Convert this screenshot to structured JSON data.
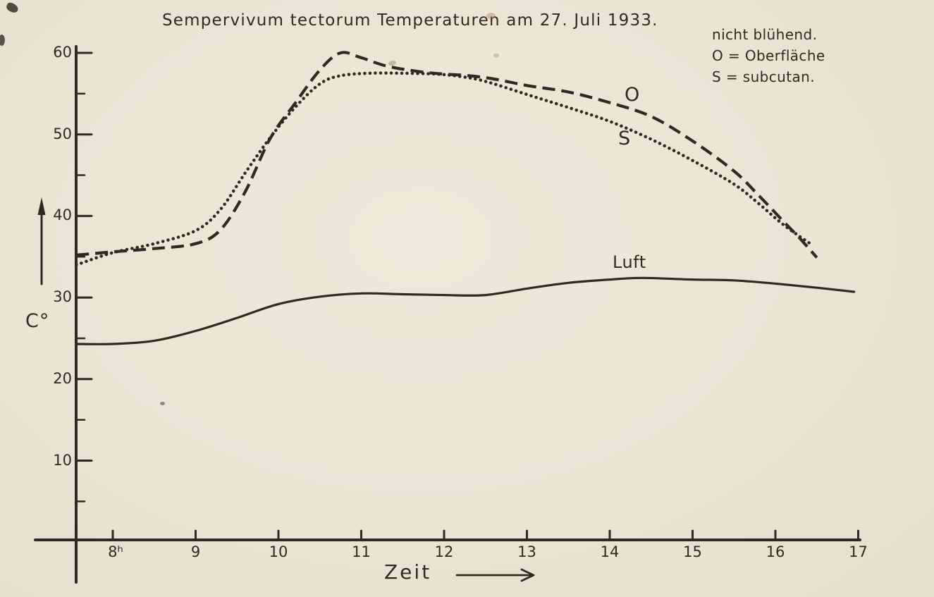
{
  "colors": {
    "paper": "#ece4d3",
    "ink": "#2e2a22"
  },
  "chart_data": {
    "type": "line",
    "title": "Sempervivum tectorum Temperaturen am 27. Juli 1933.",
    "xlabel": "Zeit",
    "ylabel": "C°",
    "x_unit": "hour of day",
    "y_unit": "degrees Celsius",
    "xlim": [
      7.56,
      17
    ],
    "ylim": [
      0,
      62
    ],
    "x_ticks": [
      8,
      9,
      10,
      11,
      12,
      13,
      14,
      15,
      16,
      17
    ],
    "x_tick_labels": [
      "8ʰ",
      "9",
      "10",
      "11",
      "12",
      "13",
      "14",
      "15",
      "16",
      "17"
    ],
    "y_ticks": [
      10,
      20,
      30,
      40,
      50,
      60
    ],
    "y_tick_labels": [
      "10",
      "20",
      "30",
      "40",
      "50",
      "60"
    ],
    "y_minor_ticks": [
      5,
      15,
      25,
      35,
      45,
      55
    ],
    "grid": false,
    "legend": {
      "position": "top-right",
      "heading": "nicht blühend.",
      "entries": [
        "O = Oberfläche",
        "S = subcutan."
      ]
    },
    "series": [
      {
        "name": "Oberflaeche",
        "label": "O",
        "line_style": "dashed",
        "points": [
          [
            7.56,
            35.2
          ],
          [
            8.0,
            35.6
          ],
          [
            8.5,
            36.0
          ],
          [
            9.0,
            36.6
          ],
          [
            9.3,
            38.3
          ],
          [
            9.6,
            43.0
          ],
          [
            9.9,
            49.5
          ],
          [
            10.2,
            53.8
          ],
          [
            10.5,
            57.9
          ],
          [
            10.75,
            60.0
          ],
          [
            11.0,
            59.4
          ],
          [
            11.3,
            58.4
          ],
          [
            11.7,
            57.7
          ],
          [
            12.0,
            57.4
          ],
          [
            12.3,
            57.2
          ],
          [
            12.6,
            56.8
          ],
          [
            13.0,
            56.0
          ],
          [
            13.5,
            55.2
          ],
          [
            14.0,
            53.9
          ],
          [
            14.5,
            52.2
          ],
          [
            15.0,
            49.2
          ],
          [
            15.5,
            45.5
          ],
          [
            15.8,
            42.5
          ],
          [
            16.1,
            39.3
          ],
          [
            16.3,
            37.2
          ],
          [
            16.5,
            34.9
          ]
        ]
      },
      {
        "name": "subcutan",
        "label": "S",
        "line_style": "dotted",
        "points": [
          [
            7.56,
            34.0
          ],
          [
            8.0,
            35.5
          ],
          [
            8.5,
            36.6
          ],
          [
            9.0,
            38.2
          ],
          [
            9.3,
            40.8
          ],
          [
            9.6,
            45.3
          ],
          [
            9.9,
            49.6
          ],
          [
            10.2,
            53.3
          ],
          [
            10.5,
            56.2
          ],
          [
            10.75,
            57.2
          ],
          [
            11.1,
            57.5
          ],
          [
            11.5,
            57.5
          ],
          [
            11.9,
            57.4
          ],
          [
            12.2,
            57.1
          ],
          [
            12.5,
            56.5
          ],
          [
            13.0,
            54.9
          ],
          [
            13.5,
            53.3
          ],
          [
            14.0,
            51.6
          ],
          [
            14.5,
            49.4
          ],
          [
            15.0,
            46.8
          ],
          [
            15.5,
            43.9
          ],
          [
            15.8,
            41.5
          ],
          [
            16.1,
            38.9
          ],
          [
            16.45,
            36.4
          ]
        ]
      },
      {
        "name": "Luft",
        "label": "Luft",
        "line_style": "solid",
        "points": [
          [
            7.56,
            24.3
          ],
          [
            8.0,
            24.3
          ],
          [
            8.5,
            24.7
          ],
          [
            9.0,
            25.9
          ],
          [
            9.5,
            27.5
          ],
          [
            10.0,
            29.2
          ],
          [
            10.5,
            30.1
          ],
          [
            11.0,
            30.5
          ],
          [
            11.5,
            30.4
          ],
          [
            12.0,
            30.3
          ],
          [
            12.5,
            30.3
          ],
          [
            13.0,
            31.1
          ],
          [
            13.5,
            31.8
          ],
          [
            14.0,
            32.2
          ],
          [
            14.4,
            32.4
          ],
          [
            15.0,
            32.2
          ],
          [
            15.5,
            32.1
          ],
          [
            16.0,
            31.7
          ],
          [
            16.5,
            31.2
          ],
          [
            16.95,
            30.7
          ]
        ]
      }
    ]
  }
}
